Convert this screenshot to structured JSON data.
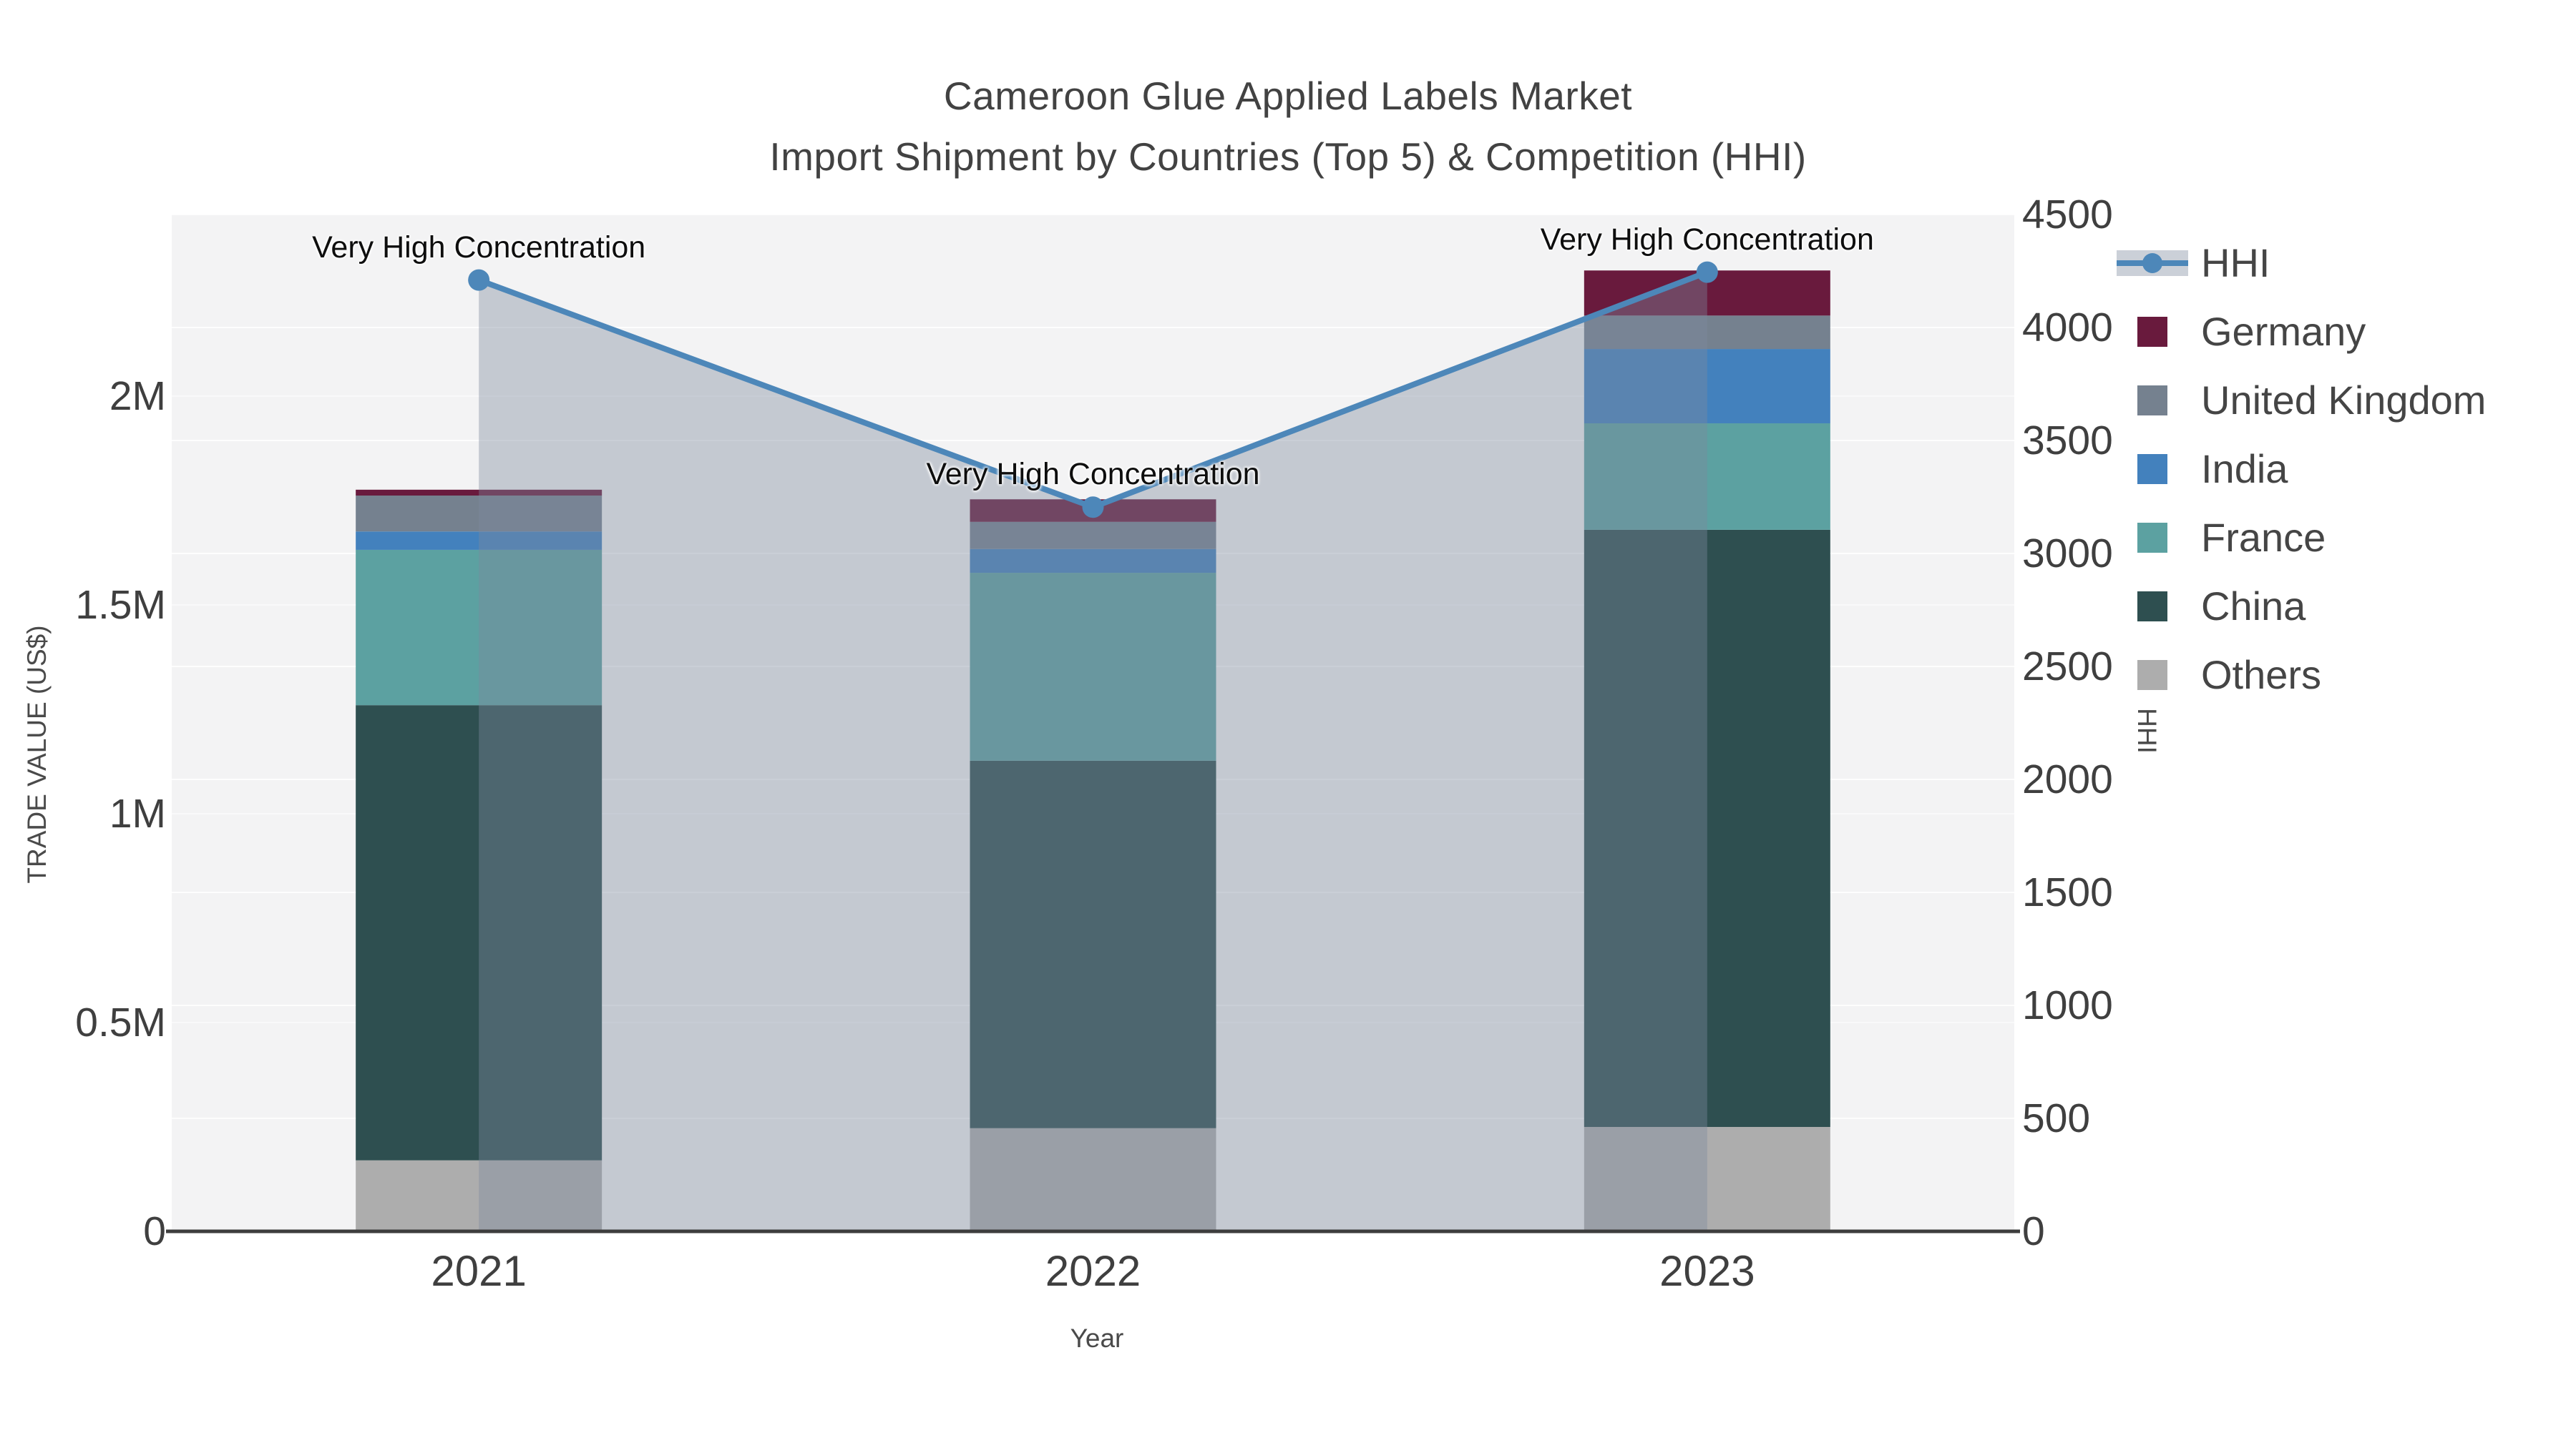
{
  "header": {
    "title_line1": "Cameroon Glue Applied Labels Market",
    "title_line2": "Import Shipment by Countries (Top 5) & Competition (HHI)"
  },
  "chart_data": {
    "type": "bar",
    "subtype": "stacked-bars-with-secondary-axis-line",
    "title": "Cameroon Glue Applied Labels Market Import Shipment by Countries (Top 5) & Competition (HHI)",
    "categories": [
      "2021",
      "2022",
      "2023"
    ],
    "series": [
      {
        "name": "Others",
        "color": "#adadad",
        "values": [
          170000,
          247000,
          250000
        ]
      },
      {
        "name": "China",
        "color": "#2e4f50",
        "values": [
          1090000,
          880000,
          1430000
        ]
      },
      {
        "name": "France",
        "color": "#5ca1a1",
        "values": [
          372000,
          450000,
          255000
        ]
      },
      {
        "name": "India",
        "color": "#4381bd",
        "values": [
          44000,
          57000,
          178000
        ]
      },
      {
        "name": "United Kingdom",
        "color": "#75818f",
        "values": [
          86000,
          65000,
          80000
        ]
      },
      {
        "name": "Germany",
        "color": "#691a3d",
        "values": [
          14000,
          54000,
          108000
        ]
      }
    ],
    "line_series": {
      "name": "HHI",
      "axis": "right",
      "color": "#4d87b9",
      "area_fill": "rgba(125,138,158,0.40)",
      "values": [
        4210,
        3205,
        4245
      ]
    },
    "annotations": [
      {
        "text": "Very High Concentration",
        "category": "2021",
        "value": 4210
      },
      {
        "text": "Very High Concentration",
        "category": "2022",
        "value": 3205
      },
      {
        "text": "Very High Concentration",
        "category": "2023",
        "value": 4245
      }
    ],
    "xlabel": "Year",
    "ylabel_left": "TRADE VALUE (US$)",
    "ylabel_right": "HHI",
    "ylim_left": [
      0,
      2435000
    ],
    "ylim_right": [
      0,
      4500
    ],
    "y_left_ticks": [
      {
        "value": 0,
        "label": "0"
      },
      {
        "value": 500000,
        "label": "0.5M"
      },
      {
        "value": 1000000,
        "label": "1M"
      },
      {
        "value": 1500000,
        "label": "1.5M"
      },
      {
        "value": 2000000,
        "label": "2M"
      }
    ],
    "y_right_ticks": [
      {
        "value": 0,
        "label": "0"
      },
      {
        "value": 500,
        "label": "500"
      },
      {
        "value": 1000,
        "label": "1000"
      },
      {
        "value": 1500,
        "label": "1500"
      },
      {
        "value": 2000,
        "label": "2000"
      },
      {
        "value": 2500,
        "label": "2500"
      },
      {
        "value": 3000,
        "label": "3000"
      },
      {
        "value": 3500,
        "label": "3500"
      },
      {
        "value": 4000,
        "label": "4000"
      },
      {
        "value": 4500,
        "label": "4500"
      }
    ],
    "legend": {
      "position": "right",
      "order": [
        "HHI",
        "Germany",
        "United Kingdom",
        "India",
        "France",
        "China",
        "Others"
      ]
    },
    "grid": true,
    "plot_bg": "#f3f3f4",
    "grid_color": "#ffffff",
    "axis_line_color": "#3d3d3d",
    "text_color": "#3f3f3f"
  }
}
